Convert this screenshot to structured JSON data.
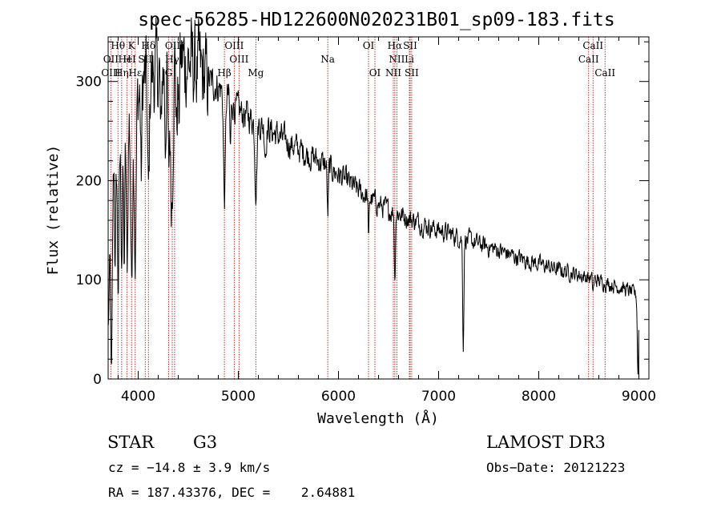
{
  "chart_data": {
    "type": "line",
    "title": "spec-56285-HD122600N020231B01_sp09-183.fits",
    "xlabel": "Wavelength (Å)",
    "ylabel": "Flux (relative)",
    "xlim": [
      3700,
      9100
    ],
    "ylim": [
      0,
      345
    ],
    "xticks": [
      4000,
      5000,
      6000,
      7000,
      8000,
      9000
    ],
    "yticks": [
      0,
      100,
      200,
      300
    ],
    "xtick_labels": [
      "4000",
      "5000",
      "6000",
      "7000",
      "8000",
      "9000"
    ],
    "ytick_labels": [
      "0",
      "100",
      "200",
      "300"
    ],
    "grid": false,
    "line_color": "#000000",
    "marker_color": "#b22222",
    "spectral_lines": [
      {
        "name": "Hθ",
        "wavelength": 3798,
        "row": 0
      },
      {
        "name": "K",
        "wavelength": 3934,
        "row": 0
      },
      {
        "name": "Hδ",
        "wavelength": 4102,
        "row": 0
      },
      {
        "name": "OIII",
        "wavelength": 4363,
        "row": 0
      },
      {
        "name": "OIII",
        "wavelength": 4959,
        "row": 0
      },
      {
        "name": "OI",
        "wavelength": 6300,
        "row": 0
      },
      {
        "name": "Hα",
        "wavelength": 6563,
        "row": 0
      },
      {
        "name": "SII",
        "wavelength": 6716,
        "row": 0
      },
      {
        "name": "CaII",
        "wavelength": 8542,
        "row": 0
      },
      {
        "name": "OII",
        "wavelength": 3727,
        "row": 1
      },
      {
        "name": "H",
        "wavelength": 3889,
        "row": 1
      },
      {
        "name": "HeI",
        "wavelength": 3889,
        "row": 1
      },
      {
        "name": "SII",
        "wavelength": 4070,
        "row": 1
      },
      {
        "name": "Hγ",
        "wavelength": 4340,
        "row": 1
      },
      {
        "name": "OIII",
        "wavelength": 5007,
        "row": 1
      },
      {
        "name": "Na",
        "wavelength": 5893,
        "row": 1
      },
      {
        "name": "NII",
        "wavelength": 6583,
        "row": 1
      },
      {
        "name": "Li",
        "wavelength": 6708,
        "row": 1
      },
      {
        "name": "CaII",
        "wavelength": 8498,
        "row": 1
      },
      {
        "name": "OIII",
        "wavelength": 3727,
        "row": 2
      },
      {
        "name": "Hη",
        "wavelength": 3835,
        "row": 2
      },
      {
        "name": "Hε",
        "wavelength": 3970,
        "row": 2
      },
      {
        "name": "G",
        "wavelength": 4304,
        "row": 2
      },
      {
        "name": "Hβ",
        "wavelength": 4861,
        "row": 2
      },
      {
        "name": "Mg",
        "wavelength": 5175,
        "row": 2
      },
      {
        "name": "OI",
        "wavelength": 6364,
        "row": 2
      },
      {
        "name": "NII",
        "wavelength": 6548,
        "row": 2
      },
      {
        "name": "SII",
        "wavelength": 6731,
        "row": 2
      },
      {
        "name": "CaII",
        "wavelength": 8662,
        "row": 2
      }
    ],
    "continuum": [
      [
        3700,
        40
      ],
      [
        3720,
        150
      ],
      [
        3760,
        230
      ],
      [
        3800,
        240
      ],
      [
        3850,
        250
      ],
      [
        3900,
        265
      ],
      [
        3950,
        275
      ],
      [
        4000,
        285
      ],
      [
        4050,
        300
      ],
      [
        4100,
        305
      ],
      [
        4200,
        310
      ],
      [
        4300,
        315
      ],
      [
        4400,
        320
      ],
      [
        4500,
        320
      ],
      [
        4600,
        310
      ],
      [
        4700,
        300
      ],
      [
        4800,
        295
      ],
      [
        4900,
        285
      ],
      [
        5000,
        270
      ],
      [
        5100,
        265
      ],
      [
        5200,
        258
      ],
      [
        5300,
        252
      ],
      [
        5400,
        245
      ],
      [
        5500,
        238
      ],
      [
        5600,
        232
      ],
      [
        5700,
        226
      ],
      [
        5800,
        220
      ],
      [
        5900,
        214
      ],
      [
        6000,
        206
      ],
      [
        6100,
        198
      ],
      [
        6200,
        190
      ],
      [
        6300,
        183
      ],
      [
        6400,
        176
      ],
      [
        6500,
        170
      ],
      [
        6600,
        167
      ],
      [
        6700,
        162
      ],
      [
        6800,
        158
      ],
      [
        6900,
        154
      ],
      [
        7000,
        150
      ],
      [
        7100,
        147
      ],
      [
        7200,
        143
      ],
      [
        7300,
        140
      ],
      [
        7400,
        136
      ],
      [
        7500,
        133
      ],
      [
        7600,
        130
      ],
      [
        7700,
        126
      ],
      [
        7800,
        122
      ],
      [
        7900,
        119
      ],
      [
        8000,
        116
      ],
      [
        8100,
        113
      ],
      [
        8200,
        110
      ],
      [
        8300,
        108
      ],
      [
        8400,
        105
      ],
      [
        8500,
        102
      ],
      [
        8600,
        99
      ],
      [
        8700,
        96
      ],
      [
        8800,
        93
      ],
      [
        8900,
        89
      ],
      [
        8960,
        86
      ],
      [
        8990,
        80
      ]
    ],
    "absorption_features": [
      [
        3733,
        170,
        8
      ],
      [
        3770,
        120,
        6
      ],
      [
        3800,
        150,
        8
      ],
      [
        3835,
        120,
        8
      ],
      [
        3860,
        140,
        6
      ],
      [
        3889,
        150,
        8
      ],
      [
        3934,
        170,
        9
      ],
      [
        3970,
        160,
        9
      ],
      [
        4030,
        90,
        6
      ],
      [
        4102,
        120,
        9
      ],
      [
        4226,
        80,
        6
      ],
      [
        4271,
        70,
        6
      ],
      [
        4304,
        110,
        8
      ],
      [
        4326,
        90,
        6
      ],
      [
        4340,
        120,
        9
      ],
      [
        4384,
        70,
        6
      ],
      [
        4405,
        60,
        6
      ],
      [
        4861,
        110,
        9
      ],
      [
        4920,
        50,
        6
      ],
      [
        5175,
        70,
        10
      ],
      [
        5270,
        25,
        8
      ],
      [
        5893,
        50,
        6
      ],
      [
        6300,
        50,
        4
      ],
      [
        6563,
        70,
        5
      ],
      [
        7246,
        110,
        6
      ],
      [
        8542,
        12,
        6
      ],
      [
        8990,
        75,
        6
      ]
    ],
    "noise_level": 8
  },
  "info": {
    "object_class": "STAR",
    "subclass": "G3",
    "cz": "cz = −14.8 ± 3.9 km/s",
    "coordinates": "RA = 187.43376, DEC =    2.64881",
    "survey": "LAMOST DR3",
    "obs_date": "Obs−Date: 20121223"
  }
}
